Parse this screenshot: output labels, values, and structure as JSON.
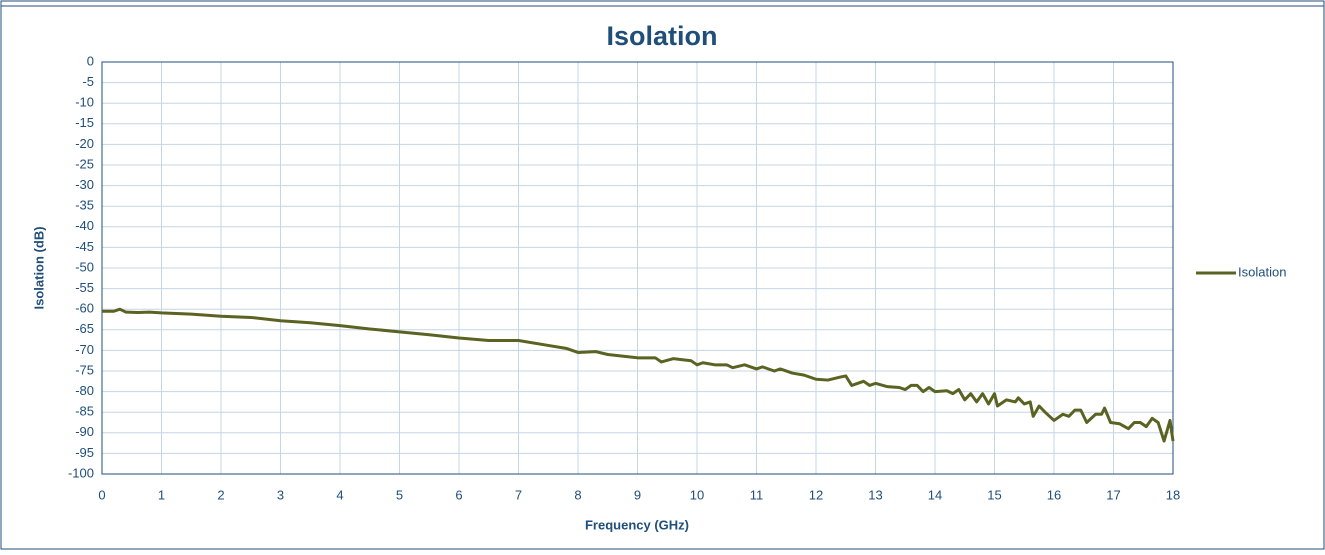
{
  "chart_data": {
    "type": "line",
    "title": "Isolation",
    "xlabel": "Frequency (GHz)",
    "ylabel": "Isolation  (dB)",
    "x": [
      0,
      0.2,
      0.3,
      0.4,
      0.6,
      0.8,
      1,
      1.5,
      2,
      2.5,
      3,
      3.5,
      4,
      4.5,
      5,
      5.5,
      6,
      6.5,
      7,
      7.5,
      7.8,
      8,
      8.3,
      8.5,
      9,
      9.3,
      9.4,
      9.6,
      9.9,
      10,
      10.1,
      10.3,
      10.5,
      10.6,
      10.8,
      11,
      11.1,
      11.3,
      11.4,
      11.6,
      11.8,
      12,
      12.2,
      12.4,
      12.5,
      12.6,
      12.8,
      12.9,
      13,
      13.2,
      13.4,
      13.5,
      13.6,
      13.7,
      13.8,
      13.9,
      14,
      14.2,
      14.3,
      14.4,
      14.5,
      14.6,
      14.7,
      14.8,
      14.9,
      15,
      15.05,
      15.2,
      15.35,
      15.4,
      15.5,
      15.6,
      15.65,
      15.75,
      15.85,
      16,
      16.15,
      16.25,
      16.35,
      16.45,
      16.55,
      16.7,
      16.8,
      16.85,
      16.95,
      17.1,
      17.25,
      17.35,
      17.45,
      17.55,
      17.65,
      17.75,
      17.85,
      17.95,
      18
    ],
    "series": [
      {
        "name": "Isolation",
        "color": "#5a6322",
        "values": [
          -60.5,
          -60.5,
          -60,
          -60.7,
          -60.8,
          -60.7,
          -60.9,
          -61.2,
          -61.7,
          -62,
          -62.8,
          -63.3,
          -64,
          -64.8,
          -65.5,
          -66.2,
          -67,
          -67.6,
          -67.6,
          -68.8,
          -69.5,
          -70.5,
          -70.3,
          -71,
          -71.8,
          -71.8,
          -72.8,
          -72,
          -72.5,
          -73.5,
          -73,
          -73.5,
          -73.5,
          -74.2,
          -73.5,
          -74.5,
          -74,
          -75,
          -74.5,
          -75.5,
          -76,
          -77,
          -77.2,
          -76.5,
          -76.2,
          -78.5,
          -77.5,
          -78.5,
          -78,
          -78.8,
          -79,
          -79.5,
          -78.5,
          -78.5,
          -80,
          -79,
          -80,
          -79.8,
          -80.5,
          -79.5,
          -82,
          -80.5,
          -82.5,
          -80.5,
          -83,
          -80.5,
          -83.5,
          -82,
          -82.5,
          -81.5,
          -83,
          -82.5,
          -86,
          -83.5,
          -85,
          -87,
          -85.5,
          -86,
          -84.5,
          -84.5,
          -87.5,
          -85.5,
          -85.5,
          -84,
          -87.5,
          -87.8,
          -89,
          -87.5,
          -87.5,
          -88.5,
          -86.5,
          -87.5,
          -92,
          -87,
          -92
        ]
      }
    ],
    "xlim": [
      0,
      18
    ],
    "xticks": [
      0,
      1,
      2,
      3,
      4,
      5,
      6,
      7,
      8,
      9,
      10,
      11,
      12,
      13,
      14,
      15,
      16,
      17,
      18
    ],
    "ylim": [
      -100,
      0
    ],
    "yticks": [
      0,
      -5,
      -10,
      -15,
      -20,
      -25,
      -30,
      -35,
      -40,
      -45,
      -50,
      -55,
      -60,
      -65,
      -70,
      -75,
      -80,
      -85,
      -90,
      -95,
      -100
    ],
    "grid": true,
    "legend": "right"
  }
}
